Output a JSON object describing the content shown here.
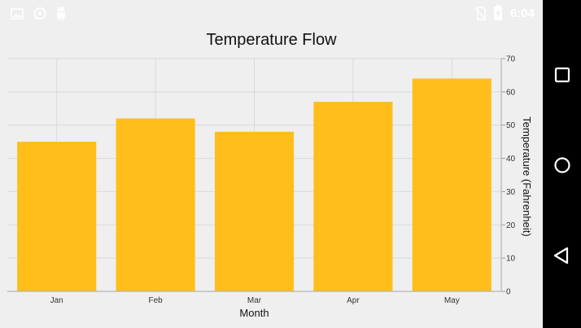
{
  "status_bar": {
    "icons": [
      "image-icon",
      "whatsapp-icon",
      "android-icon",
      "no-sim-icon",
      "battery-charging-icon"
    ],
    "time": "6:04"
  },
  "nav_bar": {
    "buttons": [
      "recents-button",
      "home-button",
      "back-button"
    ]
  },
  "colors": {
    "bar": "#FFBE1A",
    "background": "#EFEFEF",
    "gridline": "#D9D9D9"
  },
  "chart_data": {
    "type": "bar",
    "title": "Temperature Flow",
    "xlabel": "Month",
    "ylabel": "Temperature (Fahrenheit)",
    "categories": [
      "Jan",
      "Feb",
      "Mar",
      "Apr",
      "May"
    ],
    "values": [
      45,
      52,
      48,
      57,
      64
    ],
    "ylim": [
      0,
      70
    ],
    "yticks": [
      "0",
      "10",
      "20",
      "30",
      "40",
      "50",
      "60",
      "70"
    ],
    "y_axis_position": "right",
    "grid": true,
    "legend": "none"
  }
}
